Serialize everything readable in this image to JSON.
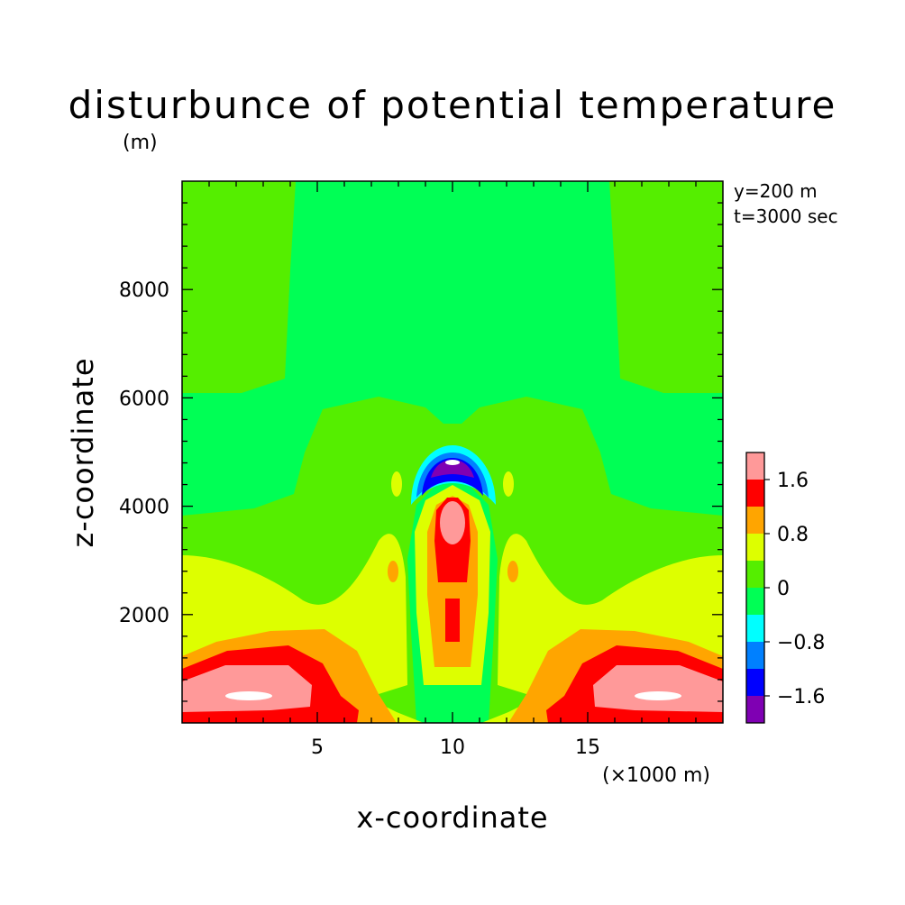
{
  "chart_data": {
    "type": "heatmap",
    "title": "disturbunce of potential temperature",
    "ylabel": "z-coordinate",
    "yunit": "(m)",
    "xlabel": "x-coordinate",
    "xunit": "(×1000 m)",
    "annotations": [
      "y=200 m",
      "t=3000 sec"
    ],
    "xlim": [
      0,
      20
    ],
    "ylim": [
      0,
      10000
    ],
    "xticks": [
      5,
      10,
      15
    ],
    "xtick_labels": [
      "5",
      "10",
      "15"
    ],
    "yticks": [
      2000,
      4000,
      6000,
      8000
    ],
    "ytick_labels": [
      "2000",
      "4000",
      "6000",
      "8000"
    ],
    "colorbar": {
      "levels": [
        -2.0,
        -1.6,
        -1.2,
        -0.8,
        -0.4,
        0,
        0.4,
        0.8,
        1.2,
        1.6,
        2.0
      ],
      "labels": [
        "-1.6",
        "-0.8",
        "0",
        "0.8",
        "1.6"
      ],
      "label_values": [
        -1.6,
        -0.8,
        0,
        0.8,
        1.6
      ],
      "colors": [
        "#7f00b3",
        "#0000ff",
        "#0080ff",
        "#00ffff",
        "#00ff55",
        "#55ee00",
        "#ddff00",
        "#ffa500",
        "#ff0000",
        "#ff9999"
      ]
    },
    "above_max_color": "#ffffff",
    "background_color": "#00ff55"
  }
}
